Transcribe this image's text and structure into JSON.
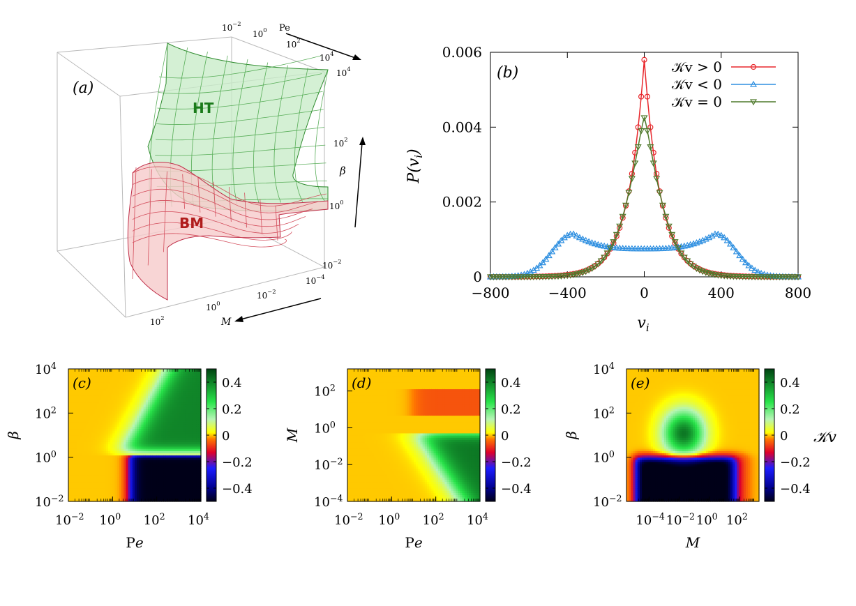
{
  "chart_data": [
    {
      "panel": "(a)",
      "type": "surface3d",
      "axes": {
        "pe": {
          "label": "Pe",
          "ticks": [
            "10-2",
            "100",
            "102",
            "104"
          ]
        },
        "m": {
          "label": "M",
          "ticks": [
            "10-4",
            "10-2",
            "100",
            "102"
          ]
        },
        "beta": {
          "label": "β",
          "ticks": [
            "10-2",
            "100",
            "102",
            "104"
          ]
        }
      },
      "surfaces": [
        {
          "name": "HT",
          "color": "#2e8b2e",
          "fill": "#c8ecc8"
        },
        {
          "name": "BM",
          "color": "#c0304a",
          "fill": "#f6cccc"
        }
      ],
      "label_colors": {
        "HT": "#1a7a1a",
        "BM": "#b01c1c"
      }
    },
    {
      "panel": "(b)",
      "type": "line",
      "xlabel": "v_i",
      "ylabel": "P(v_i)",
      "xlim": [
        -800,
        800
      ],
      "ylim": [
        0,
        0.006
      ],
      "xticks": [
        "−800",
        "−400",
        "0",
        "400",
        "800"
      ],
      "yticks": [
        "0",
        "0.002",
        "0.004",
        "0.006"
      ],
      "legend_position": "top-right",
      "series": [
        {
          "name": "𝒦v > 0",
          "color": "#e8262b",
          "marker": "circle",
          "shape": {
            "type": "laplace",
            "peak": 0.0058,
            "scale": 86
          }
        },
        {
          "name": "𝒦v < 0",
          "color": "#2e8fe0",
          "marker": "triangle-up",
          "shape": {
            "type": "bimodal",
            "peak_centers": [
              -370,
              370
            ],
            "peak_height": 0.00115,
            "center_value": 0.00075
          }
        },
        {
          "name": "𝒦v = 0",
          "color": "#4f7a2c",
          "marker": "triangle-down",
          "shape": {
            "type": "laplace-gaussian",
            "peak": 0.00425,
            "scale": 115
          }
        }
      ]
    },
    {
      "panel": "(c)",
      "type": "heatmap",
      "xlabel": "Pe",
      "ylabel": "β",
      "xticks": [
        "10-2",
        "100",
        "102",
        "104"
      ],
      "yticks": [
        "10-2",
        "100",
        "102",
        "104"
      ],
      "xrange_log10": [
        -2,
        4
      ],
      "yrange_log10": [
        -2,
        4
      ],
      "colorbar": {
        "range": [
          -0.5,
          0.5
        ],
        "ticks": [
          "0.4",
          "0.2",
          "0",
          "−0.2",
          "−0.4"
        ]
      }
    },
    {
      "panel": "(d)",
      "type": "heatmap",
      "xlabel": "Pe",
      "ylabel": "M",
      "xticks": [
        "10-2",
        "100",
        "102",
        "104"
      ],
      "yticks": [
        "10-4",
        "10-2",
        "100",
        "102"
      ],
      "xrange_log10": [
        -2,
        4
      ],
      "yrange_log10": [
        -4,
        3.2
      ],
      "colorbar": {
        "range": [
          -0.5,
          0.5
        ],
        "ticks": [
          "0.4",
          "0.2",
          "0",
          "−0.2",
          "−0.4"
        ]
      }
    },
    {
      "panel": "(e)",
      "type": "heatmap",
      "xlabel": "M",
      "ylabel": "β",
      "xticks": [
        "10-4",
        "10-2",
        "100",
        "102"
      ],
      "yticks": [
        "10-2",
        "100",
        "102",
        "104"
      ],
      "xrange_log10": [
        -5.5,
        3.3
      ],
      "yrange_log10": [
        -2,
        4
      ],
      "colorbar": {
        "range": [
          -0.5,
          0.5
        ],
        "ticks": [
          "0.4",
          "0.2",
          "0",
          "−0.2",
          "−0.4"
        ],
        "label": "𝒦v"
      }
    }
  ]
}
